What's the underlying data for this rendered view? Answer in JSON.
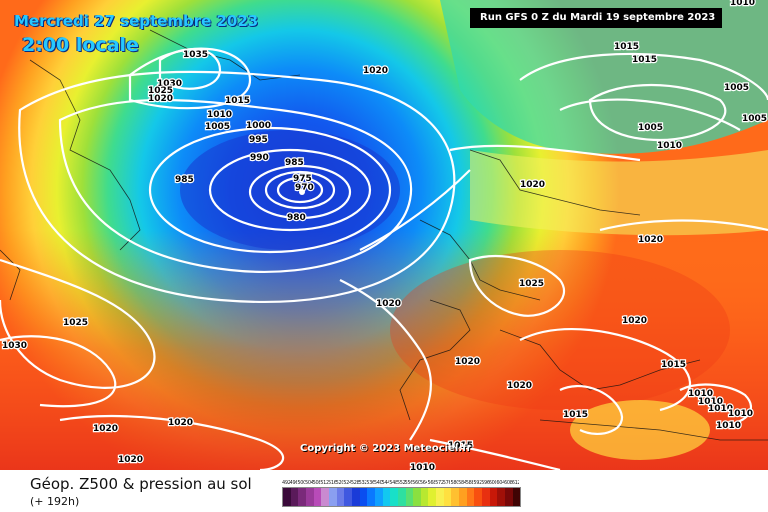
{
  "header": {
    "date": "Mercredi 27 septembre 2023",
    "local_time": "2:00 locale",
    "run_info": "Run GFS 0 Z du Mardi 19 septembre 2023",
    "copyright": "Copyright © 2023 Meteociel.fr"
  },
  "footer": {
    "title": "Géop. Z500 & pression au sol",
    "subtitle": "(+ 192h)"
  },
  "legend": {
    "values": [
      "492",
      "496",
      "500",
      "504",
      "508",
      "512",
      "516",
      "520",
      "524",
      "528",
      "532",
      "536",
      "540",
      "544",
      "548",
      "552",
      "556",
      "560",
      "564",
      "568",
      "572",
      "576",
      "580",
      "584",
      "588",
      "592",
      "596",
      "600",
      "604",
      "608",
      "612"
    ],
    "colors": [
      "#3a0a3a",
      "#5a1a5a",
      "#7a2a7a",
      "#9a3a9a",
      "#b84bb8",
      "#c98ad0",
      "#8a9ff0",
      "#6a7be8",
      "#3f58e0",
      "#1a3bd8",
      "#0a4ef0",
      "#0a78ff",
      "#0fa0ff",
      "#12c8f0",
      "#18e0c8",
      "#2ee0a0",
      "#5ae070",
      "#8ae040",
      "#b8e830",
      "#e0f030",
      "#f8f050",
      "#ffe040",
      "#ffc030",
      "#ffa020",
      "#ff7818",
      "#f85010",
      "#e83010",
      "#c81808",
      "#a01008",
      "#780808",
      "#400404"
    ]
  },
  "map": {
    "isobar_labels": [
      "1035",
      "1030",
      "1025",
      "1020",
      "1015",
      "1010",
      "1005",
      "1000",
      "995",
      "990",
      "985",
      "985",
      "975",
      "970",
      "980",
      "1020",
      "1015",
      "1015",
      "1005",
      "1005",
      "1010",
      "1005",
      "1010",
      "1020",
      "1020",
      "1025",
      "1020",
      "1020",
      "1015",
      "1025",
      "1030",
      "1020",
      "1020",
      "1020",
      "1020",
      "1020",
      "1015",
      "1010",
      "1010",
      "1010",
      "1010",
      "1015",
      "1010",
      "1010"
    ]
  }
}
